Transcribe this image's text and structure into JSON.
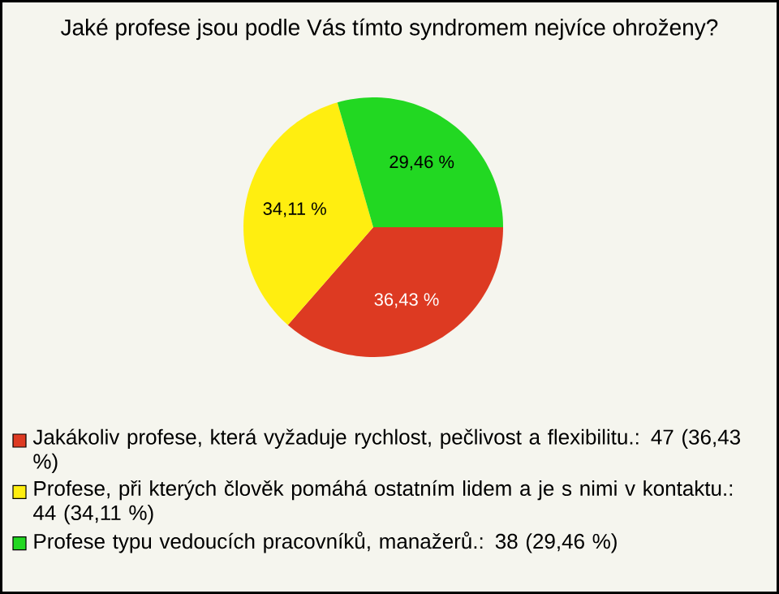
{
  "chart_data": {
    "type": "pie",
    "title": "Jaké profese jsou podle Vás tímto syndromem nejvíce ohroženy?",
    "categories": [
      "Jakákoliv profese, která vyžaduje rychlost, pečlivost a flexibilitu.: 47 (36,43 %)",
      "Profese, při kterých člověk pomáhá ostatním lidem a je s nimi v kontaktu.: 44 (34,11 %)",
      "Profese typu vedoucích pracovníků, manažerů.: 38 (29,46 %)"
    ],
    "values": [
      36.43,
      34.11,
      29.46
    ],
    "value_labels": [
      "36,43 %",
      "34,11 %",
      "29,46 %"
    ],
    "colors": [
      "#dd3a22",
      "#ffee10",
      "#22d822"
    ],
    "legend": "bottom"
  }
}
